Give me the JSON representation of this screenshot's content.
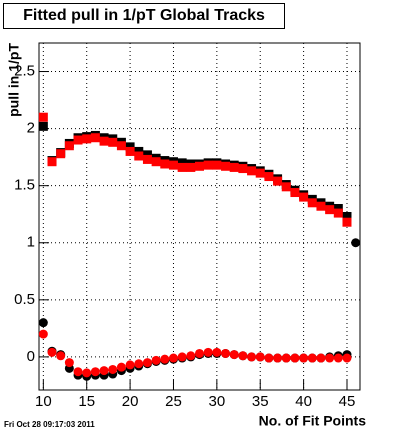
{
  "chart_data": {
    "type": "scatter",
    "title": "Fitted pull in 1/pT  Global Tracks",
    "x_label": "No. of Fit Points",
    "y_label": "pull in 1/pT",
    "timestamp": "Fri Oct 28 09:17:03 2011",
    "xlim": [
      9.5,
      46.5
    ],
    "ylim": [
      -0.29,
      2.75
    ],
    "xticks": [
      10,
      15,
      20,
      25,
      30,
      35,
      40,
      45
    ],
    "yticks": [
      0,
      0.5,
      1,
      1.5,
      2,
      2.5
    ],
    "grid": true,
    "series": [
      {
        "color": "#000000",
        "marker": "square",
        "x": [
          10,
          11,
          12,
          13,
          14,
          15,
          16,
          17,
          18,
          19,
          20,
          21,
          22,
          23,
          24,
          25,
          26,
          27,
          28,
          29,
          30,
          31,
          32,
          33,
          34,
          35,
          36,
          37,
          38,
          39,
          40,
          41,
          42,
          43,
          44,
          45
        ],
        "values": [
          2.02,
          1.72,
          1.79,
          1.87,
          1.92,
          1.93,
          1.94,
          1.92,
          1.91,
          1.88,
          1.84,
          1.8,
          1.77,
          1.74,
          1.72,
          1.71,
          1.7,
          1.69,
          1.69,
          1.7,
          1.7,
          1.69,
          1.68,
          1.67,
          1.65,
          1.63,
          1.6,
          1.56,
          1.51,
          1.46,
          1.42,
          1.38,
          1.35,
          1.32,
          1.3,
          1.23
        ]
      },
      {
        "color": "#ff0000",
        "marker": "square",
        "x": [
          10,
          11,
          12,
          13,
          14,
          15,
          16,
          17,
          18,
          19,
          20,
          21,
          22,
          23,
          24,
          25,
          26,
          27,
          28,
          29,
          30,
          31,
          32,
          33,
          34,
          35,
          36,
          37,
          38,
          39,
          40,
          41,
          42,
          43,
          44,
          45
        ],
        "values": [
          2.1,
          1.71,
          1.78,
          1.85,
          1.9,
          1.91,
          1.92,
          1.89,
          1.88,
          1.85,
          1.8,
          1.76,
          1.73,
          1.71,
          1.69,
          1.68,
          1.66,
          1.66,
          1.67,
          1.68,
          1.68,
          1.67,
          1.66,
          1.65,
          1.63,
          1.61,
          1.58,
          1.54,
          1.49,
          1.44,
          1.4,
          1.35,
          1.32,
          1.29,
          1.26,
          1.18
        ]
      },
      {
        "color": "#000000",
        "marker": "circle",
        "x": [
          10,
          11,
          12,
          13,
          14,
          15,
          16,
          17,
          18,
          19,
          20,
          21,
          22,
          23,
          24,
          25,
          26,
          27,
          28,
          29,
          30,
          31,
          32,
          33,
          34,
          35,
          36,
          37,
          38,
          39,
          40,
          41,
          42,
          43,
          44,
          45,
          46
        ],
        "values": [
          0.3,
          0.05,
          0.02,
          -0.1,
          -0.16,
          -0.17,
          -0.16,
          -0.16,
          -0.15,
          -0.12,
          -0.1,
          -0.08,
          -0.06,
          -0.04,
          -0.03,
          -0.02,
          -0.01,
          0,
          0.02,
          0.03,
          0.03,
          0.03,
          0.02,
          0.01,
          0,
          0,
          -0.01,
          -0.01,
          -0.01,
          -0.01,
          -0.01,
          -0.01,
          -0.01,
          0,
          0.01,
          0.02,
          1.0
        ]
      },
      {
        "color": "#ff0000",
        "marker": "circle",
        "x": [
          10,
          11,
          12,
          13,
          14,
          15,
          16,
          17,
          18,
          19,
          20,
          21,
          22,
          23,
          24,
          25,
          26,
          27,
          28,
          29,
          30,
          31,
          32,
          33,
          34,
          35,
          36,
          37,
          38,
          39,
          40,
          41,
          42,
          43,
          44,
          45
        ],
        "values": [
          0.2,
          0.04,
          0.01,
          -0.05,
          -0.13,
          -0.14,
          -0.13,
          -0.12,
          -0.11,
          -0.09,
          -0.07,
          -0.06,
          -0.05,
          -0.03,
          -0.02,
          -0.01,
          0,
          0.01,
          0.03,
          0.04,
          0.04,
          0.03,
          0.02,
          0.01,
          0,
          0,
          -0.01,
          -0.01,
          -0.01,
          -0.01,
          -0.01,
          -0.01,
          -0.01,
          -0.01,
          -0.01,
          -0.01
        ]
      }
    ]
  }
}
